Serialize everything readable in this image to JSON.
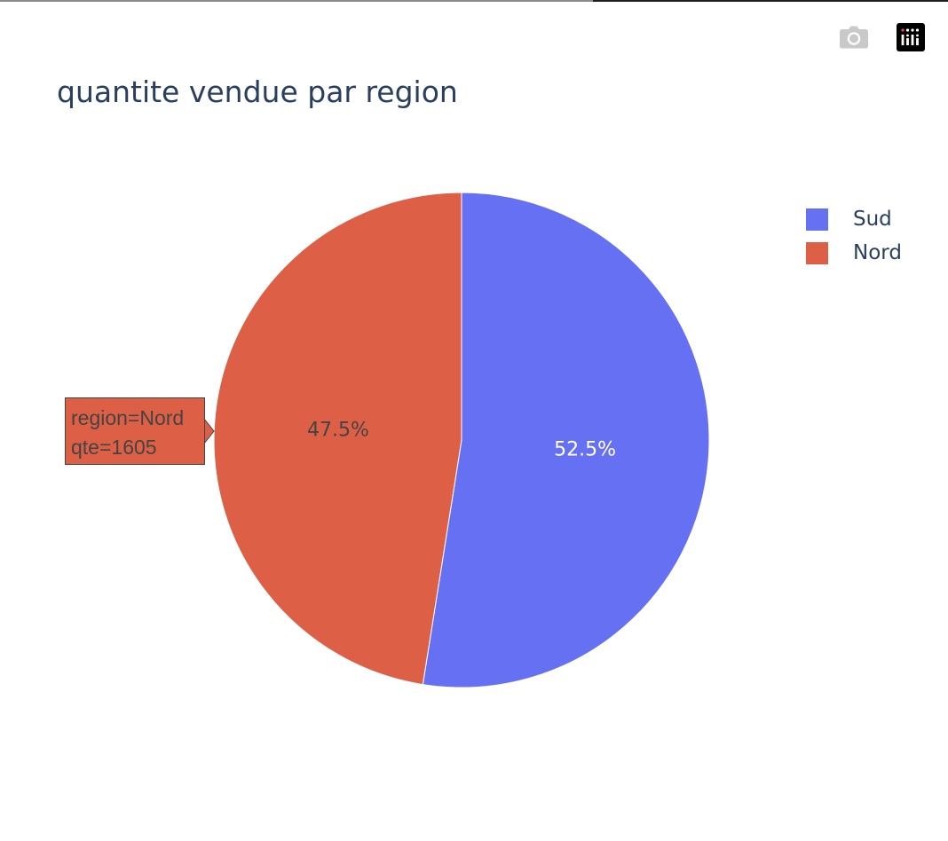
{
  "title": "quantite vendue par region",
  "modebar": {
    "buttons": [
      {
        "icon": "camera-icon"
      },
      {
        "icon": "plotly-logo-icon"
      }
    ]
  },
  "colors": {
    "Sud": "#6670f2",
    "Nord": "#dd5f46",
    "title_text": "#2a3f5f"
  },
  "chart_data": {
    "type": "pie",
    "title": "quantite vendue par region",
    "labels": [
      "Sud",
      "Nord"
    ],
    "percentages": [
      52.5,
      47.5
    ],
    "value_labels": [
      "52.5%",
      "47.5%"
    ],
    "known_values": {
      "Nord": 1605
    },
    "legend": {
      "entries": [
        "Sud",
        "Nord"
      ],
      "placement": "top-right"
    }
  },
  "hover": {
    "line1": "region=Nord",
    "line2": "qte=1605"
  }
}
